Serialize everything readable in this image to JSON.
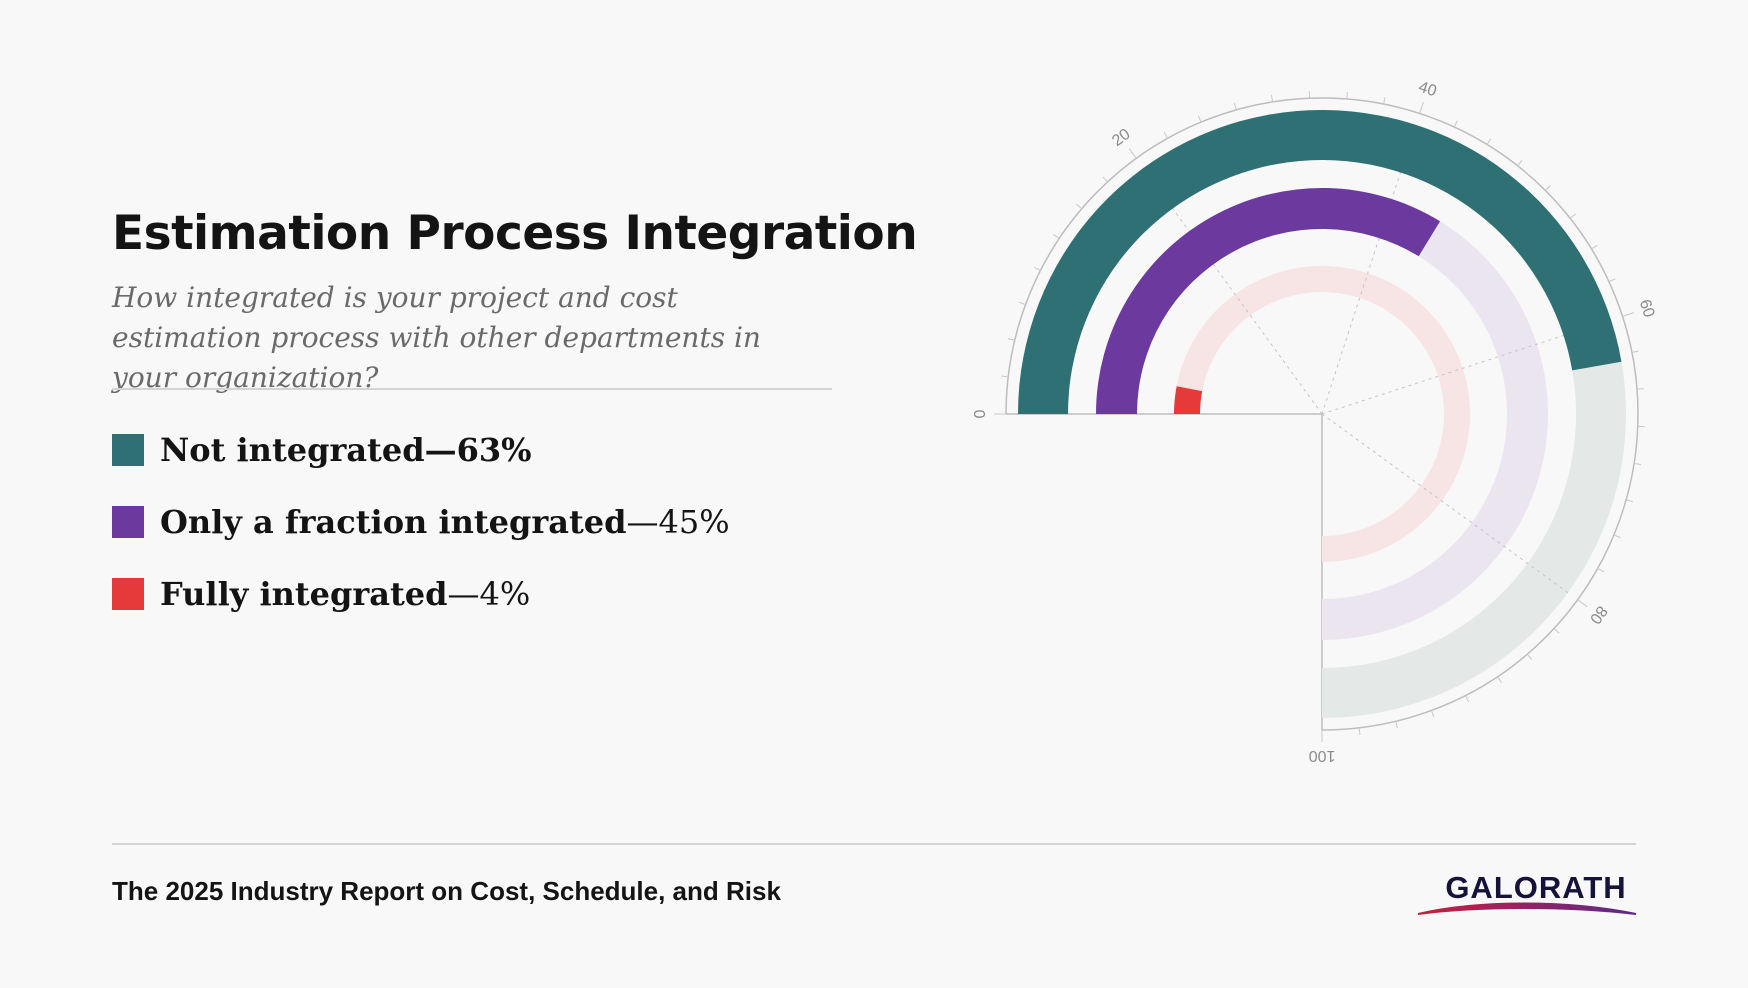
{
  "page": {
    "title": "Estimation Process Integration",
    "subtitle": "How integrated is your project and cost estimation process with other departments in your organization?",
    "footer": "The 2025 Industry Report on Cost, Schedule, and Risk",
    "logo_text": "GALORATH"
  },
  "legend": [
    {
      "label": "Not integrated",
      "dash": "—",
      "value": "63%",
      "color": "#2e7073"
    },
    {
      "label": "Only a fraction integrated",
      "dash": "— ",
      "value": "45%",
      "color": "#6c3a9e"
    },
    {
      "label": "Fully integrated",
      "dash": "— ",
      "value": "4%",
      "color": "#e53a3a"
    }
  ],
  "colors": {
    "teal": "#2e7073",
    "purple": "#6c3a9e",
    "red": "#e53a3a",
    "teal_track": "#e4e9e8",
    "purple_track": "#ebe5f0",
    "red_track": "#f7e4e4",
    "logo_gradient_start": "#c81e3c",
    "logo_gradient_end": "#5a2a8a"
  },
  "chart_data": {
    "type": "radial-bar",
    "axis_min": 0,
    "axis_max": 100,
    "tick_labels": [
      "0",
      "20",
      "40",
      "60",
      "80",
      "100"
    ],
    "series": [
      {
        "name": "Not integrated",
        "value": 63
      },
      {
        "name": "Only a fraction integrated",
        "value": 45
      },
      {
        "name": "Fully integrated",
        "value": 4
      }
    ]
  }
}
